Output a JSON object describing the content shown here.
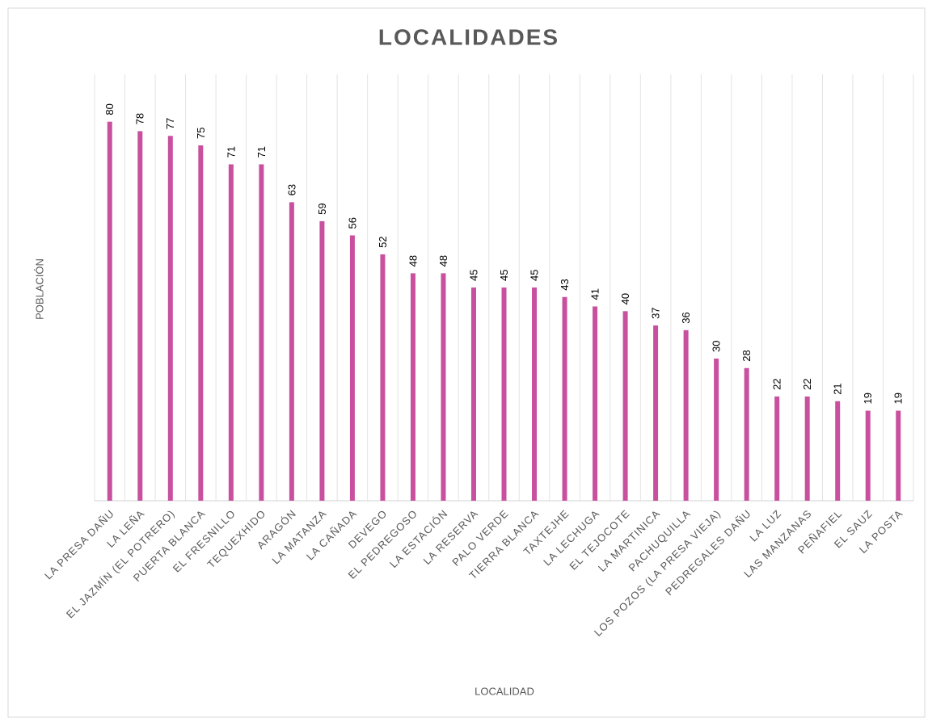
{
  "chart_data": {
    "type": "bar",
    "title": "LOCALIDADES",
    "x_label": "LOCALIDAD",
    "y_label": "POBLACIÓN",
    "categories": [
      "LA PRESA DAÑU",
      "LA LEÑA",
      "EL JAZMÍN (EL POTRERO)",
      "PUERTA BLANCA",
      "EL FRESNILLO",
      "TEQUEXHIDO",
      "ARAGÓN",
      "LA MATANZA",
      "LA CAÑADA",
      "DEVEGO",
      "EL PEDREGOSO",
      "LA ESTACIÓN",
      "LA RESERVA",
      "PALO VERDE",
      "TIERRA BLANCA",
      "TAXTEJHE",
      "LA LECHUGA",
      "EL TEJOCOTE",
      "LA MARTINICA",
      "PACHUQUILLA",
      "LOS POZOS (LA PRESA VIEJA)",
      "PEDREGALES DAÑU",
      "LA LUZ",
      "LAS MANZANAS",
      "PEÑAFIEL",
      "EL SAUZ",
      "LA POSTA"
    ],
    "values": [
      80,
      78,
      77,
      75,
      71,
      71,
      63,
      59,
      56,
      52,
      48,
      48,
      45,
      45,
      45,
      43,
      41,
      40,
      37,
      36,
      30,
      28,
      22,
      22,
      21,
      19,
      19
    ],
    "color": "#c9509e",
    "ylim": [
      0,
      90
    ]
  }
}
